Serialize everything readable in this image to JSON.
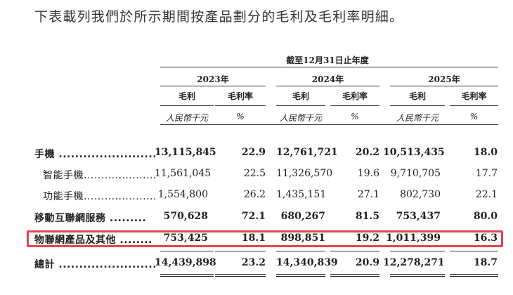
{
  "intro": "下表載列我們於所示期間按產品劃分的毛利及毛利率明細。",
  "header": {
    "period": "截至12月31日止年度",
    "years": [
      "2023年",
      "2024年",
      "2025年"
    ],
    "gross_profit": "毛利",
    "gross_margin": "毛利率",
    "unit_amount": "人民幣千元",
    "unit_pct": "%"
  },
  "rows": [
    {
      "label": "手機 ............................",
      "v": [
        "13,115,845",
        "22.9",
        "12,761,721",
        "20.2",
        "10,513,435",
        "18.0"
      ]
    },
    {
      "label": "智能手機...........................",
      "v": [
        "11,561,045",
        "22.5",
        "11,326,570",
        "19.6",
        "9,710,705",
        "17.7"
      ]
    },
    {
      "label": "功能手機...........................",
      "v": [
        "1,554,800",
        "26.2",
        "1,435,151",
        "27.1",
        "802,730",
        "22.1"
      ]
    },
    {
      "label": "移動互聯網服務 .........",
      "v": [
        "570,628",
        "72.1",
        "680,267",
        "81.5",
        "753,437",
        "80.0"
      ]
    },
    {
      "label": "物聯網產品及其他 ........",
      "v": [
        "753,425",
        "18.1",
        "898,851",
        "19.2",
        "1,011,399",
        "16.3"
      ]
    },
    {
      "label": "總計 ...............................",
      "v": [
        "14,439,898",
        "23.2",
        "14,340,839",
        "20.9",
        "12,278,271",
        "18.7"
      ]
    }
  ]
}
